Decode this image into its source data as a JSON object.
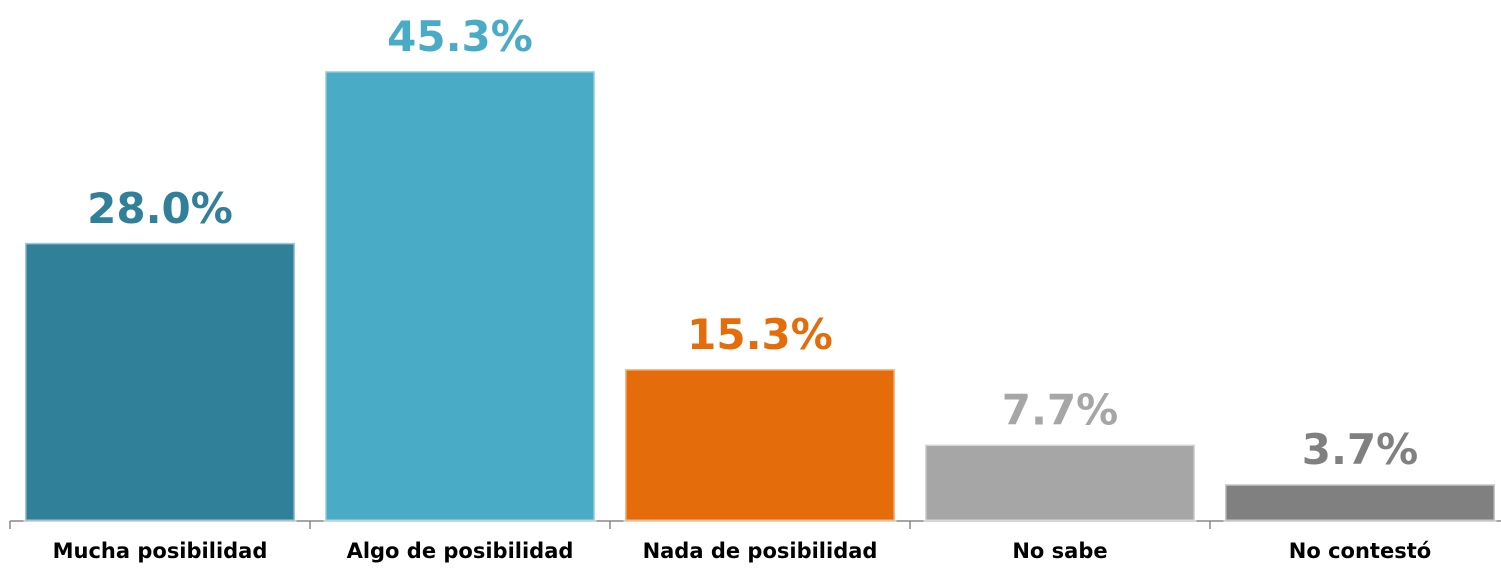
{
  "chart_data": {
    "type": "bar",
    "categories": [
      "Mucha posibilidad",
      "Algo de posibilidad",
      "Nada de posibilidad",
      "No sabe",
      "No contestó"
    ],
    "values": [
      28.0,
      45.3,
      15.3,
      7.7,
      3.7
    ],
    "value_labels": [
      "28.0%",
      "45.3%",
      "15.3%",
      "7.7%",
      "3.7%"
    ],
    "colors": [
      "#31809a",
      "#4aabc6",
      "#e46c0a",
      "#a6a6a6",
      "#808080"
    ]
  }
}
